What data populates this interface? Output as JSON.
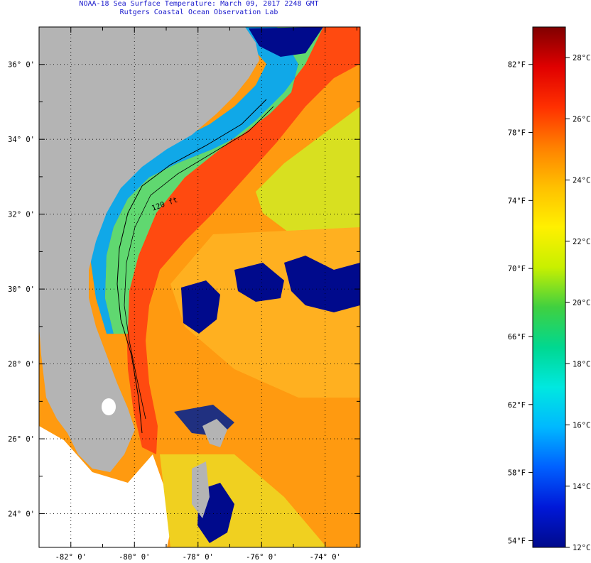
{
  "title": {
    "line1": "NOAA-18 Sea Surface Temperature:  March 09, 2017 2248 GMT",
    "line2": "Rutgers Coastal Ocean Observation Lab"
  },
  "map": {
    "lat_labels": [
      "36° 0'",
      "34° 0'",
      "32° 0'",
      "30° 0'",
      "28° 0'",
      "26° 0'",
      "24° 0'"
    ],
    "lon_labels": [
      "-82° 0'",
      "-80° 0'",
      "-78° 0'",
      "-76° 0'",
      "-74° 0'"
    ],
    "lat_values": [
      36,
      34,
      32,
      30,
      28,
      26,
      24
    ],
    "lon_values": [
      -82,
      -80,
      -78,
      -76,
      -74
    ],
    "extent": {
      "lon_min": -83.0,
      "lon_max": -72.9,
      "lat_min": 23.1,
      "lat_max": 37.0
    },
    "isobath_label": "120 ft",
    "colors": {
      "land": "#b4b4b4",
      "cloud": "#000a8c",
      "warm": "#ff4a00",
      "cool": "#ffd800"
    }
  },
  "colorbar": {
    "min_c": 12,
    "max_c": 29,
    "fahrenheit_labels": [
      "82°F",
      "78°F",
      "74°F",
      "70°F",
      "66°F",
      "62°F",
      "58°F",
      "54°F"
    ],
    "fahrenheit_values": [
      82,
      78,
      74,
      70,
      66,
      62,
      58,
      54
    ],
    "celsius_labels": [
      "28°C",
      "26°C",
      "24°C",
      "22°C",
      "20°C",
      "18°C",
      "16°C",
      "14°C",
      "12°C"
    ],
    "celsius_values": [
      28,
      26,
      24,
      22,
      20,
      18,
      16,
      14,
      12
    ],
    "stops": [
      "#000a8c",
      "#0018d8",
      "#0060ff",
      "#00b8ff",
      "#00e8e0",
      "#00d890",
      "#40d040",
      "#c8f000",
      "#fff000",
      "#ffc000",
      "#ff8000",
      "#ff3000",
      "#e00000",
      "#800000"
    ]
  }
}
